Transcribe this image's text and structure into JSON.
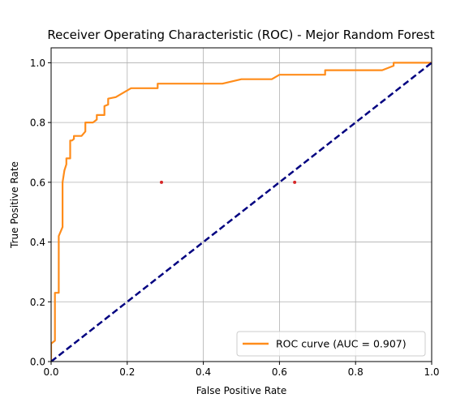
{
  "chart_data": {
    "type": "line",
    "title": "Receiver Operating Characteristic (ROC) - Mejor Random Forest",
    "xlabel": "False Positive Rate",
    "ylabel": "True Positive Rate",
    "xlim": [
      0.0,
      1.0
    ],
    "ylim": [
      0.0,
      1.05
    ],
    "grid": true,
    "legend_position": "lower-right",
    "x_ticks": [
      "0.0",
      "0.2",
      "0.4",
      "0.6",
      "0.8",
      "1.0"
    ],
    "y_ticks": [
      "0.0",
      "0.2",
      "0.4",
      "0.6",
      "0.8",
      "1.0"
    ],
    "series": [
      {
        "name": "ROC curve (AUC = 0.907)",
        "style": "solid",
        "color": "#ff8c1a",
        "x": [
          0.0,
          0.0,
          0.01,
          0.01,
          0.02,
          0.02,
          0.02,
          0.03,
          0.03,
          0.035,
          0.04,
          0.04,
          0.05,
          0.05,
          0.055,
          0.06,
          0.06,
          0.08,
          0.09,
          0.09,
          0.11,
          0.12,
          0.12,
          0.14,
          0.14,
          0.15,
          0.15,
          0.17,
          0.21,
          0.28,
          0.28,
          0.45,
          0.5,
          0.58,
          0.6,
          0.72,
          0.72,
          0.87,
          0.9,
          0.9,
          1.0
        ],
        "y": [
          0.0,
          0.06,
          0.07,
          0.23,
          0.23,
          0.4,
          0.42,
          0.45,
          0.6,
          0.64,
          0.66,
          0.68,
          0.68,
          0.74,
          0.74,
          0.745,
          0.755,
          0.755,
          0.77,
          0.8,
          0.8,
          0.81,
          0.825,
          0.825,
          0.855,
          0.86,
          0.88,
          0.885,
          0.915,
          0.915,
          0.93,
          0.93,
          0.945,
          0.945,
          0.96,
          0.96,
          0.975,
          0.975,
          0.99,
          1.0,
          1.0
        ]
      },
      {
        "name": "",
        "style": "dashed",
        "color": "#000080",
        "x": [
          0.0,
          1.0
        ],
        "y": [
          0.0,
          1.0
        ]
      }
    ],
    "points": [
      {
        "x": 0.29,
        "y": 0.6,
        "color": "#d62728"
      },
      {
        "x": 0.64,
        "y": 0.6,
        "color": "#d62728"
      }
    ],
    "legend": [
      {
        "label": "ROC curve (AUC = 0.907)",
        "color": "#ff8c1a"
      }
    ]
  }
}
